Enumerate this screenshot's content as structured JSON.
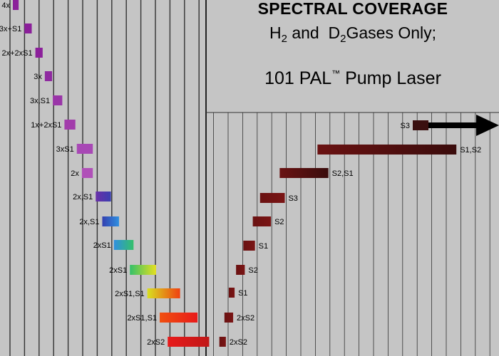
{
  "title": {
    "main": "SPECTRAL COVERAGE",
    "gas_h": "H",
    "gas_h_sub": "2",
    "gas_and": " and  ",
    "gas_d": "D",
    "gas_d_sub": "2",
    "gas_rest": "Gases Only;",
    "laser": "101 PAL",
    "laser_tm": "™",
    "laser_rest": " Pump Laser"
  },
  "colors": {
    "background_panel": "#c5c5c5",
    "grid_line": "#333333",
    "left_bars_gradient": [
      "#8b1f9a",
      "#3a3fb0",
      "#2f8fe0",
      "#34c06a",
      "#e6e020",
      "#f04010",
      "#e81a1a"
    ],
    "right_bars": "#7a1414",
    "arrow": "#000000"
  },
  "chart_data": {
    "type": "bar",
    "orientation": "horizontal",
    "title": "SPECTRAL COVERAGE",
    "grid": true,
    "series": [
      {
        "bars": [
          {
            "label": "4x",
            "start": 0.0,
            "end": 0.4,
            "color": "#8b1f9a"
          },
          {
            "label": "3x+S1",
            "start": 0.8,
            "end": 1.3,
            "color": "#8b1f9a"
          },
          {
            "label": "2x+2xS1",
            "start": 1.55,
            "end": 2.05,
            "color": "#8b1f9a"
          },
          {
            "label": "3x",
            "start": 2.2,
            "end": 2.7,
            "color": "#8f2aa0"
          },
          {
            "label": "3x,S1",
            "start": 2.75,
            "end": 3.4,
            "color": "#9a35a8"
          },
          {
            "label": "1x+2xS1",
            "start": 3.55,
            "end": 4.3,
            "color": "#a23cab"
          },
          {
            "label": "3xS1",
            "start": 4.4,
            "end": 5.5,
            "color": "#a848b5"
          },
          {
            "label": "2x",
            "start": 4.75,
            "end": 5.5,
            "color": "#b050b8"
          },
          {
            "label": "2x,S1",
            "start": 5.7,
            "end": 6.75,
            "gradient": [
              "#6a30a8",
              "#3a3fb0"
            ]
          },
          {
            "label": "2x,S1",
            "start": 6.15,
            "end": 7.3,
            "gradient": [
              "#3440b0",
              "#2f8fe0"
            ]
          },
          {
            "label": "2xS1",
            "start": 6.95,
            "end": 8.3,
            "gradient": [
              "#2f8fe0",
              "#34c06a"
            ]
          },
          {
            "label": "2xS1",
            "start": 8.05,
            "end": 9.85,
            "gradient": [
              "#34c06a",
              "#e6e020"
            ]
          },
          {
            "label": "2xS1,S1",
            "start": 9.25,
            "end": 11.5,
            "gradient": [
              "#d8e020",
              "#f04010"
            ]
          },
          {
            "label": "2xS1,S1",
            "start": 10.1,
            "end": 12.7,
            "gradient": [
              "#f05010",
              "#e81a1a"
            ]
          },
          {
            "label": "2xS2",
            "start": 10.65,
            "end": 13.5,
            "gradient": [
              "#e81a1a",
              "#c01818"
            ]
          }
        ]
      },
      {
        "bars": [
          {
            "label": "S3",
            "start": 27.5,
            "end": 33.5,
            "arrow": true
          },
          {
            "label": "S1,S2",
            "start": 20.95,
            "end": 30.5
          },
          {
            "label": "S2,S1",
            "start": 18.35,
            "end": 21.7
          },
          {
            "label": "S3",
            "start": 17.0,
            "end": 18.7
          },
          {
            "label": "S2",
            "start": 16.5,
            "end": 17.75
          },
          {
            "label": "S1",
            "start": 15.85,
            "end": 16.65
          },
          {
            "label": "S2",
            "start": 15.35,
            "end": 15.95
          },
          {
            "label": "S1",
            "start": 14.85,
            "end": 15.25
          },
          {
            "label": "2xS2",
            "start": 14.55,
            "end": 15.15
          },
          {
            "label": "2xS2",
            "start": 14.2,
            "end": 14.65
          }
        ]
      }
    ]
  }
}
